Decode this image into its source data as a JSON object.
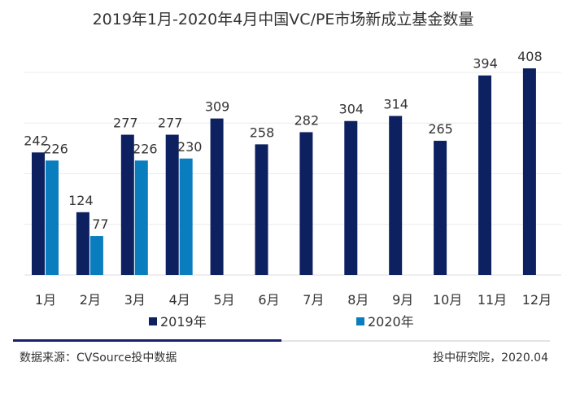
{
  "chart_data": {
    "type": "bar",
    "title": "2019年1月-2020年4月中国VC/PE市场新成立基金数量",
    "categories": [
      "1月",
      "2月",
      "3月",
      "4月",
      "5月",
      "6月",
      "7月",
      "8月",
      "9月",
      "10月",
      "11月",
      "12月"
    ],
    "series": [
      {
        "name": "2019年",
        "color": "#0d2060",
        "values": [
          242,
          124,
          277,
          277,
          309,
          258,
          282,
          304,
          314,
          265,
          394,
          408
        ]
      },
      {
        "name": "2020年",
        "color": "#0a7dbf",
        "values": [
          226,
          77,
          226,
          230,
          null,
          null,
          null,
          null,
          null,
          null,
          null,
          null
        ]
      }
    ],
    "ylim": [
      0,
      420
    ],
    "grid": true,
    "gridlines": [
      100,
      200,
      300,
      400
    ],
    "legend": "bottom",
    "xlabel": "",
    "ylabel": ""
  },
  "footer": {
    "source": "数据来源：CVSource投中数据",
    "credit": "投中研究院，2020.04"
  },
  "watermark": "CVSource 投中数据"
}
